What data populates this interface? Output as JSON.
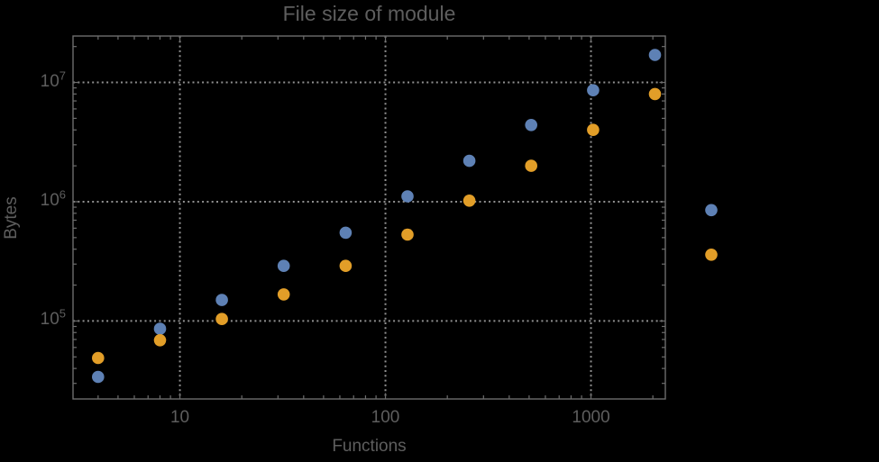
{
  "page": {
    "background": "#000000"
  },
  "chart_data": {
    "type": "scatter",
    "title": "File size of module",
    "xlabel": "Functions",
    "ylabel": "Bytes",
    "x_scale": "log",
    "y_scale": "log",
    "xlim": [
      3.02,
      2300
    ],
    "ylim": [
      22200,
      24500000
    ],
    "grid": "dotted gray lines at powers of 10, both axes",
    "legend_position": "none",
    "point_radius": 6.8,
    "plot_range_clipping": false,
    "x": [
      4,
      8,
      16,
      32,
      64,
      128,
      256,
      512,
      1024,
      2048,
      3850
    ],
    "series": [
      {
        "name": "blue",
        "color": "#5E81B5",
        "values": [
          34000,
          86000,
          150000,
          290000,
          550000,
          1110000,
          2200000,
          4400000,
          8600000,
          17000000,
          850000
        ]
      },
      {
        "name": "orange",
        "color": "#E29E28",
        "values": [
          49000,
          69000,
          104000,
          167000,
          290000,
          530000,
          1020000,
          2000000,
          4000000,
          8000000,
          360000
        ]
      }
    ],
    "x_ticks": [
      {
        "value": 10,
        "label": "10"
      },
      {
        "value": 100,
        "label": "100"
      },
      {
        "value": 1000,
        "label": "1000"
      }
    ],
    "y_ticks": [
      {
        "value": 100000,
        "base": "10",
        "exp": "5"
      },
      {
        "value": 1000000,
        "base": "10",
        "exp": "6"
      },
      {
        "value": 10000000,
        "base": "10",
        "exp": "7"
      }
    ],
    "colors": {
      "frame": "#6d6d6d",
      "grid": "#8f8f8f",
      "text": "#5e5e5e"
    }
  }
}
